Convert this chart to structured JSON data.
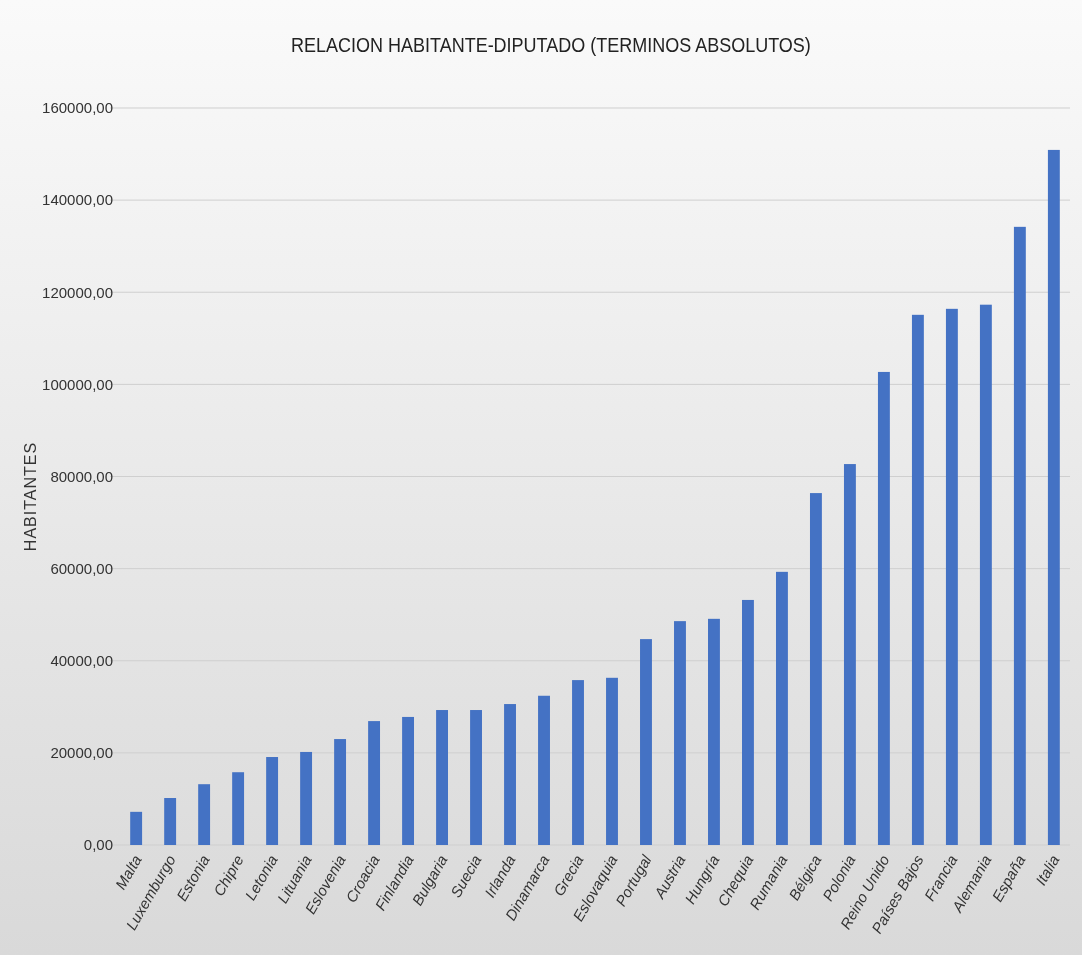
{
  "chart_data": {
    "type": "bar",
    "title": "RELACION HABITANTE-DIPUTADO (TERMINOS ABSOLUTOS)",
    "ylabel": "HABITANTES",
    "categories": [
      "Malta",
      "Luxemburgo",
      "Estonia",
      "Chipre",
      "Letonia",
      "Lituania",
      "Eslovenia",
      "Croacia",
      "Finlandia",
      "Bulgaria",
      "Suecia",
      "Irlanda",
      "Dinamarca",
      "Grecia",
      "Eslovaquia",
      "Portugal",
      "Austria",
      "Hungría",
      "Chequia",
      "Rumania",
      "Bélgica",
      "Polonia",
      "Reino Unido",
      "Países Bajos",
      "Francia",
      "Alemania",
      "España",
      "Italia"
    ],
    "values": [
      7200,
      10200,
      13200,
      15800,
      19100,
      20200,
      23000,
      26900,
      27800,
      29300,
      29300,
      30600,
      32400,
      35800,
      36300,
      44700,
      48600,
      49100,
      53200,
      59300,
      76400,
      82700,
      102700,
      115100,
      116400,
      117300,
      134200,
      150900
    ],
    "color": "#4472c4",
    "ylim": [
      0,
      160000
    ],
    "yticks": [
      {
        "value": 0,
        "label": "0,00"
      },
      {
        "value": 20000,
        "label": "20000,00"
      },
      {
        "value": 40000,
        "label": "40000,00"
      },
      {
        "value": 60000,
        "label": "60000,00"
      },
      {
        "value": 80000,
        "label": "80000,00"
      },
      {
        "value": 100000,
        "label": "100000,00"
      },
      {
        "value": 120000,
        "label": "120000,00"
      },
      {
        "value": 140000,
        "label": "140000,00"
      },
      {
        "value": 160000,
        "label": "160000,00"
      }
    ],
    "grid": "y"
  }
}
